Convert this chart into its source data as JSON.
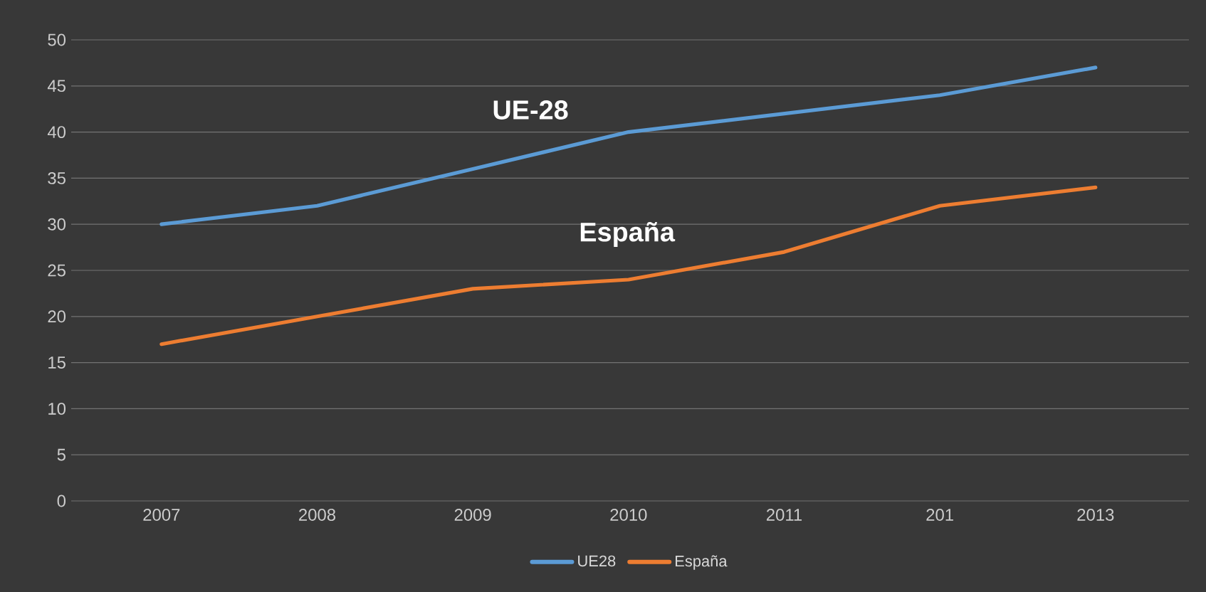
{
  "chart_data": {
    "type": "line",
    "categories": [
      "2007",
      "2008",
      "2009",
      "2010",
      "2011",
      "201",
      "2013"
    ],
    "series": [
      {
        "name": "UE28",
        "color": "#5b9bd5",
        "values": [
          30,
          32,
          36,
          40,
          42,
          44,
          47
        ]
      },
      {
        "name": "España",
        "color": "#ed7d31",
        "values": [
          17,
          20,
          23,
          24,
          27,
          32,
          34
        ]
      }
    ],
    "ylim": [
      0,
      50
    ],
    "yticks": [
      0,
      5,
      10,
      15,
      20,
      25,
      30,
      35,
      40,
      45,
      50
    ],
    "grid": "y",
    "legend": "bottom",
    "annotations": [
      "UE-28",
      "España"
    ]
  }
}
